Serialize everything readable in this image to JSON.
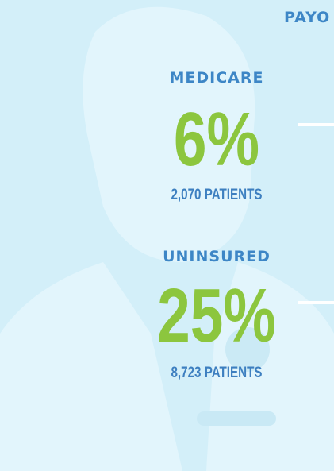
{
  "header": {
    "title": "PAYO"
  },
  "items": [
    {
      "label": "MEDICARE",
      "percent": "6%",
      "patients": "2,070 PATIENTS"
    },
    {
      "label": "UNINSURED",
      "percent": "25%",
      "patients": "8,723 PATIENTS"
    }
  ]
}
